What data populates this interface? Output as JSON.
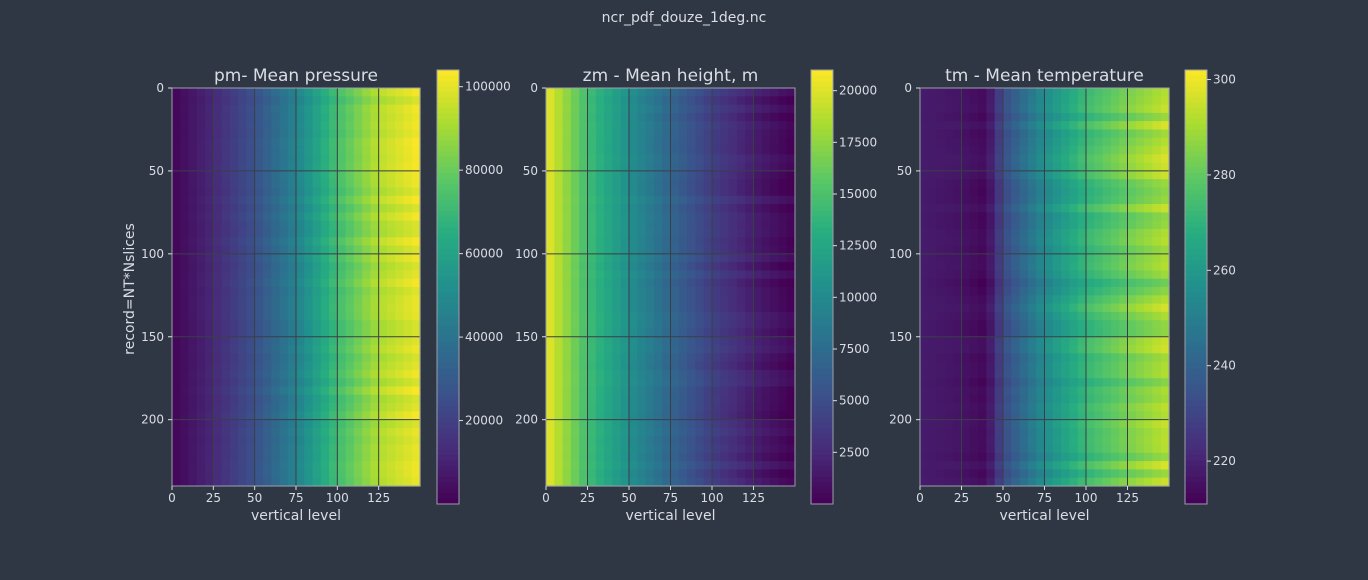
{
  "suptitle": "ncr_pdf_douze_1deg.nc",
  "colormap": [
    "#440154",
    "#472c7a",
    "#3b518b",
    "#2c718e",
    "#21908d",
    "#27ad81",
    "#5cc863",
    "#aadc32",
    "#fde725"
  ],
  "theme": {
    "background": "#303744",
    "text": "#d9dde4",
    "grid": "#3a3f47",
    "frame": "#9aa0aa"
  },
  "chart_data": [
    {
      "type": "heatmap",
      "title": "pm- Mean pressure",
      "xlabel": "vertical level",
      "ylabel": "record=NT*Nslices",
      "xlim": [
        0,
        150
      ],
      "ylim": [
        240,
        0
      ],
      "xticks": [
        0,
        25,
        50,
        75,
        100,
        125
      ],
      "yticks": [
        0,
        50,
        100,
        150,
        200
      ],
      "grid": true,
      "colorbar": {
        "min": 0,
        "max": 104000,
        "ticks": [
          20000,
          40000,
          60000,
          80000,
          100000
        ]
      },
      "field": {
        "variable": "pm",
        "along_level": "increasing",
        "profile_at_levels": [
          [
            0,
            1000
          ],
          [
            25,
            12000
          ],
          [
            50,
            26000
          ],
          [
            75,
            46000
          ],
          [
            100,
            72000
          ],
          [
            125,
            92000
          ],
          [
            149,
            101000
          ]
        ]
      }
    },
    {
      "type": "heatmap",
      "title": "zm - Mean height, m",
      "xlabel": "vertical level",
      "ylabel": "",
      "xlim": [
        0,
        150
      ],
      "ylim": [
        240,
        0
      ],
      "xticks": [
        0,
        25,
        50,
        75,
        100,
        125
      ],
      "yticks": [
        0,
        50,
        100,
        150,
        200
      ],
      "grid": true,
      "colorbar": {
        "min": 0,
        "max": 21000,
        "ticks": [
          2500,
          5000,
          7500,
          10000,
          12500,
          15000,
          17500,
          20000
        ]
      },
      "field": {
        "variable": "zm",
        "along_level": "decreasing",
        "profile_at_levels": [
          [
            0,
            20500
          ],
          [
            25,
            14500
          ],
          [
            50,
            10500
          ],
          [
            75,
            7000
          ],
          [
            100,
            4000
          ],
          [
            125,
            1800
          ],
          [
            149,
            200
          ]
        ]
      }
    },
    {
      "type": "heatmap",
      "title": "tm - Mean temperature",
      "xlabel": "vertical level",
      "ylabel": "",
      "xlim": [
        0,
        150
      ],
      "ylim": [
        240,
        0
      ],
      "xticks": [
        0,
        25,
        50,
        75,
        100,
        125
      ],
      "yticks": [
        0,
        50,
        100,
        150,
        200
      ],
      "grid": true,
      "colorbar": {
        "min": 211,
        "max": 302,
        "ticks": [
          220,
          240,
          260,
          280,
          300
        ]
      },
      "field": {
        "variable": "tm",
        "along_level": "cold band near level 30-45 then increasing",
        "profile_at_levels": [
          [
            0,
            218
          ],
          [
            25,
            216
          ],
          [
            40,
            213
          ],
          [
            50,
            232
          ],
          [
            75,
            255
          ],
          [
            100,
            272
          ],
          [
            125,
            283
          ],
          [
            149,
            292
          ]
        ]
      }
    }
  ]
}
